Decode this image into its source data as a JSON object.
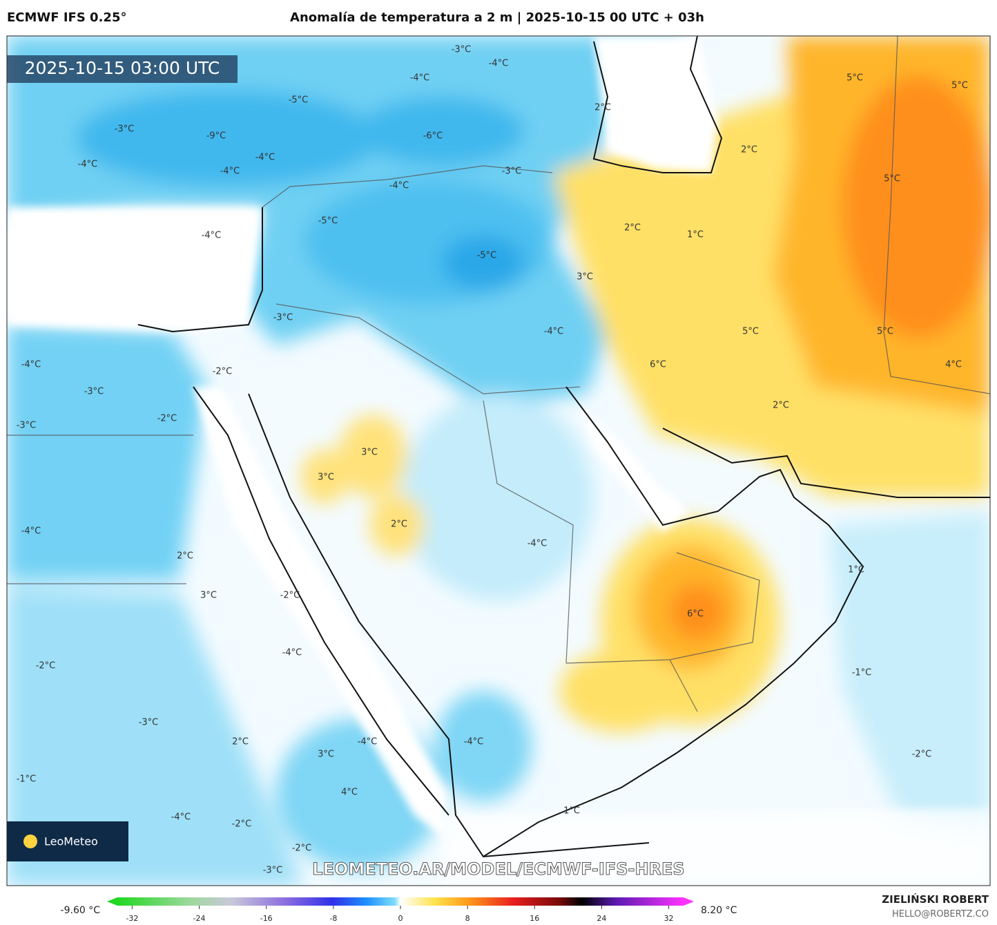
{
  "header": {
    "model": "ECMWF IFS 0.25°",
    "title": "Anomalía de temperatura a 2 m | 2025-10-15 00 UTC + 03h"
  },
  "map": {
    "timestamp": "2025-10-15 03:00 UTC",
    "labels": [
      "-3°C",
      "-4°C",
      "-4°C",
      "-5°C",
      "2°C",
      "5°C",
      "5°C",
      "-3°C",
      "-9°C",
      "-6°C",
      "-4°C",
      "-4°C",
      "-4°C",
      "-3°C",
      "2°C",
      "-4°C",
      "5°C",
      "-4°C",
      "-5°C",
      "2°C",
      "1°C",
      "-5°C",
      "3°C",
      "-3°C",
      "-4°C",
      "5°C",
      "5°C",
      "-4°C",
      "-2°C",
      "6°C",
      "4°C",
      "-3°C",
      "2°C",
      "-3°C",
      "-2°C",
      "3°C",
      "3°C",
      "2°C",
      "-4°C",
      "-4°C",
      "2°C",
      "1°C",
      "3°C",
      "-2°C",
      "6°C",
      "-4°C",
      "-2°C",
      "-1°C",
      "-3°C",
      "2°C",
      "-4°C",
      "-4°C",
      "3°C",
      "-2°C",
      "-1°C",
      "4°C",
      "1°C",
      "-4°C",
      "-2°C",
      "-2°C",
      "-3°C"
    ],
    "watermark": "LEOMETEO.AR/MODEL/ECMWF-IFS-HRES",
    "logo": "LeoMeteo"
  },
  "colorbar": {
    "min_label": "-9.60 °C",
    "max_label": "8.20 °C",
    "lim": [
      -35,
      35
    ],
    "ticks": [
      -32,
      -24,
      -16,
      -8,
      0,
      8,
      16,
      24,
      32
    ]
  },
  "credit": {
    "author": "ZIELIŃSKI ROBERT",
    "email": "HELLO@ROBERTZ.CO"
  }
}
